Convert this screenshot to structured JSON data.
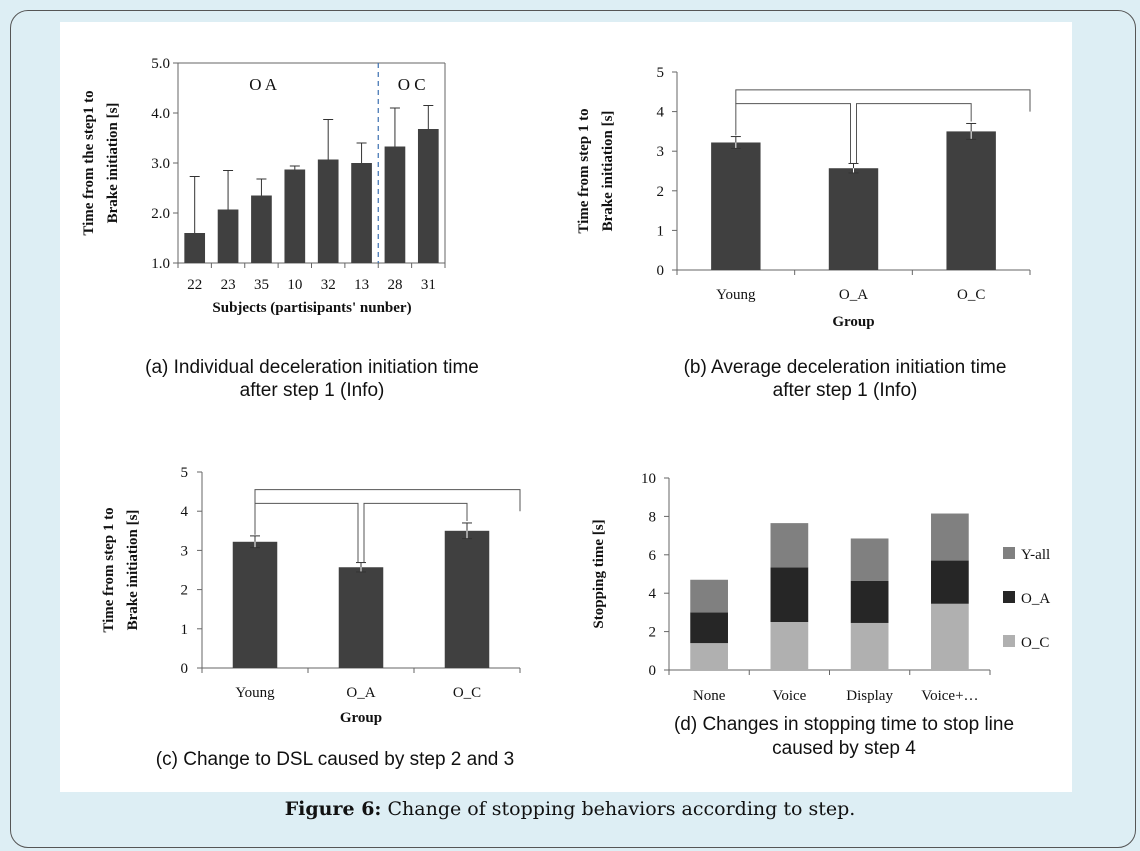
{
  "figure_caption": {
    "label": "Figure 6:",
    "text": " Change of stopping behaviors according to step."
  },
  "colors": {
    "bar": "#404040",
    "Y-all": "#808080",
    "O_A": "#262626",
    "O_C": "#b0b0b0"
  },
  "chart_data": [
    {
      "id": "a",
      "type": "bar",
      "caption_lines": [
        "(a) Individual deceleration initiation time",
        "after step 1 (Info)"
      ],
      "ylabel_lines": [
        "Time from the step1 to",
        "Brake  initiation  [s]"
      ],
      "xlabel": "Subjects (partisipants'  nunber)",
      "ylim": [
        1.0,
        5.0
      ],
      "yticks": [
        "1.0",
        "2.0",
        "3.0",
        "4.0",
        "5.0"
      ],
      "categories": [
        "22",
        "23",
        "35",
        "10",
        "32",
        "13",
        "28",
        "31"
      ],
      "values": [
        1.6,
        2.07,
        2.35,
        2.87,
        3.07,
        3.0,
        3.33,
        3.68
      ],
      "error_upper": [
        1.13,
        0.78,
        0.33,
        0.07,
        0.8,
        0.4,
        0.77,
        0.47
      ],
      "groups": [
        {
          "label": "O  A"
        },
        {
          "label": "O  C"
        }
      ]
    },
    {
      "id": "b",
      "type": "bar",
      "caption_lines": [
        "(b) Average deceleration initiation time",
        "after step 1 (Info)"
      ],
      "ylabel_lines": [
        "Time from step 1 to",
        "Brake initiation [s]"
      ],
      "xlabel": "Group",
      "ylim": [
        0,
        5
      ],
      "yticks": [
        "0",
        "1",
        "2",
        "3",
        "4",
        "5"
      ],
      "categories": [
        "Young",
        "O_A",
        "O_C"
      ],
      "values": [
        3.22,
        2.57,
        3.5
      ],
      "error": [
        0.15,
        0.12,
        0.2
      ]
    },
    {
      "id": "c",
      "type": "bar",
      "caption_lines": [
        "(c) Change to DSL caused by step 2 and 3"
      ],
      "ylabel_lines": [
        "Time from step 1 to",
        "Brake initiation [s]"
      ],
      "xlabel": "Group",
      "ylim": [
        0,
        5
      ],
      "yticks": [
        "0",
        "1",
        "2",
        "3",
        "4",
        "5"
      ],
      "categories": [
        "Young",
        "O_A",
        "O_C"
      ],
      "values": [
        3.22,
        2.57,
        3.5
      ],
      "error": [
        0.15,
        0.12,
        0.2
      ]
    },
    {
      "id": "d",
      "type": "bar",
      "stacked": true,
      "caption_lines": [
        "(d) Changes in stopping time to stop line",
        "caused by step 4"
      ],
      "ylabel_lines": [
        "Stopping time [s]"
      ],
      "ylim": [
        0,
        10
      ],
      "yticks": [
        "0",
        "2",
        "4",
        "6",
        "8",
        "10"
      ],
      "categories": [
        "None",
        "Voice",
        "Display",
        "Voice+…"
      ],
      "series": [
        {
          "name": "O_C",
          "values": [
            1.4,
            2.5,
            2.45,
            3.45
          ]
        },
        {
          "name": "O_A",
          "values": [
            1.6,
            2.85,
            2.2,
            2.25
          ]
        },
        {
          "name": "Y-all",
          "values": [
            1.7,
            2.3,
            2.2,
            2.45
          ]
        }
      ],
      "legend": [
        "Y-all",
        "O_A",
        "O_C"
      ],
      "legend_position": "right"
    }
  ]
}
